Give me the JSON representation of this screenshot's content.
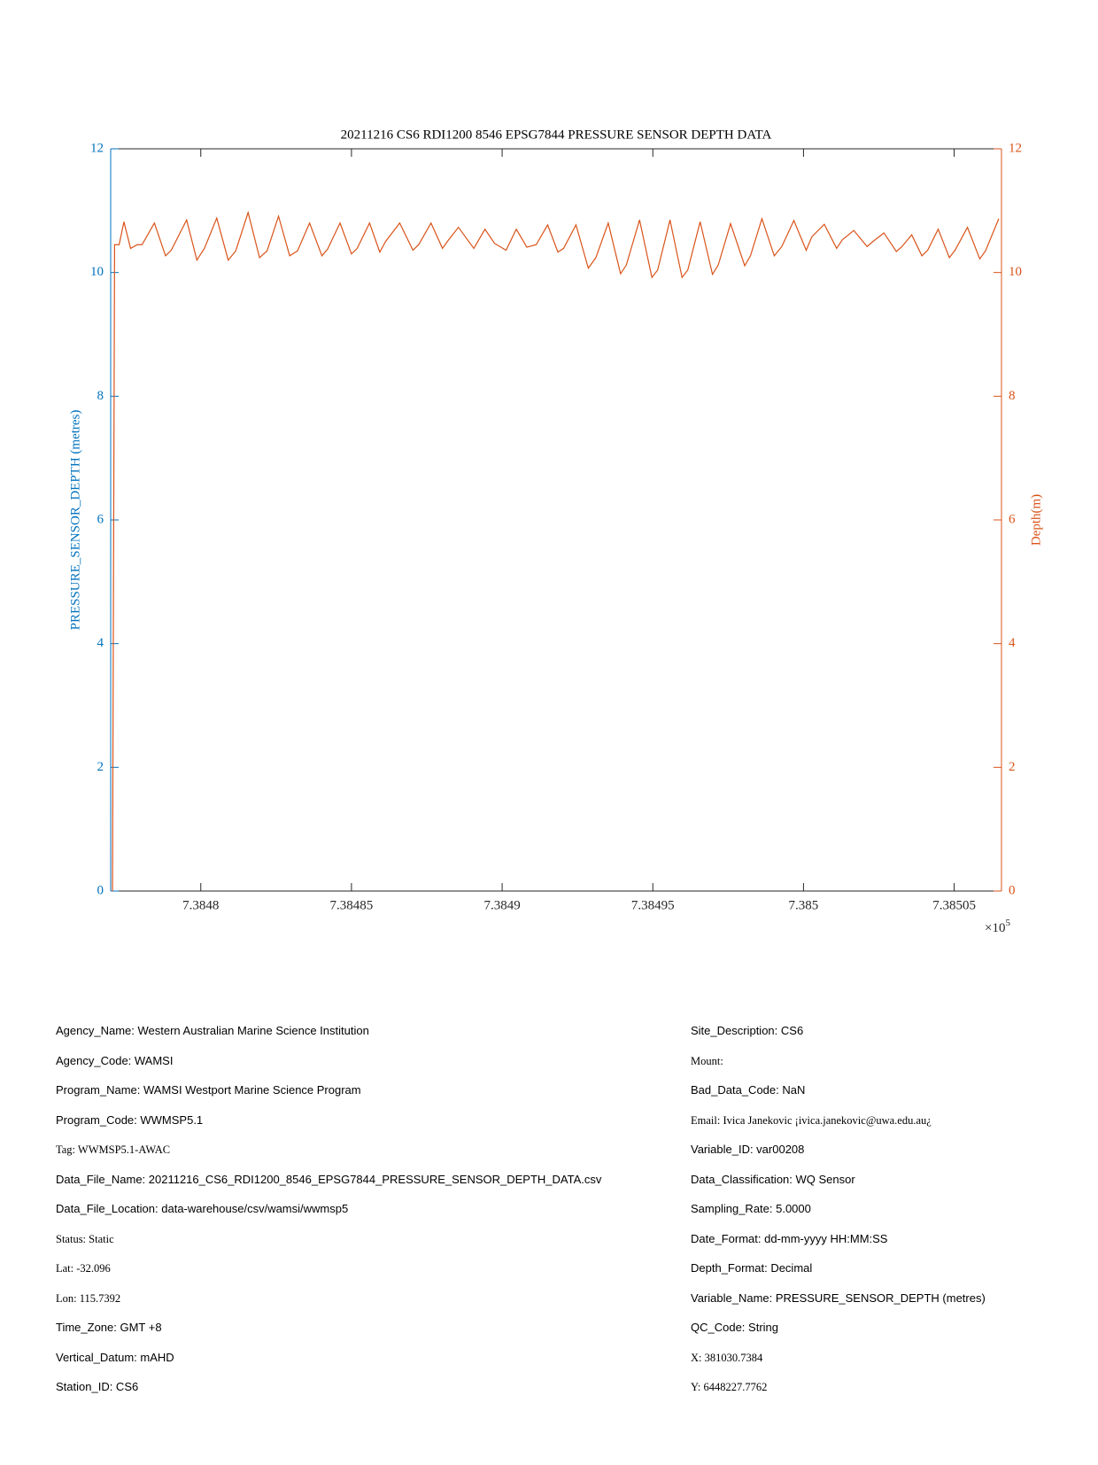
{
  "chart_data": {
    "type": "line",
    "title": "20211216 CS6 RDI1200 8546 EPSG7844 PRESSURE SENSOR DEPTH DATA",
    "ylabel": "PRESSURE_SENSOR_DEPTH (metres)",
    "ylabel_color": "#0072BD",
    "y2label": "Depth(m)",
    "y2label_color": "#D95319",
    "x_multiplier": "×10",
    "x_exponent": "5",
    "xlim": [
      738477.01,
      738506.57
    ],
    "xticks": [
      {
        "value": 738480,
        "label": "7.3848"
      },
      {
        "value": 738485,
        "label": "7.38485"
      },
      {
        "value": 738490,
        "label": "7.3849"
      },
      {
        "value": 738495,
        "label": "7.38495"
      },
      {
        "value": 738500,
        "label": "7.385"
      },
      {
        "value": 738505,
        "label": "7.38505"
      }
    ],
    "ylim": [
      0,
      12
    ],
    "yticks": [
      0,
      2,
      4,
      6,
      8,
      10,
      12
    ],
    "y2lim": [
      0,
      12
    ],
    "y2ticks": [
      0,
      2,
      4,
      6,
      8,
      10,
      12
    ],
    "x": [
      738477.07,
      738477.14,
      738477.29,
      738477.45,
      738477.67,
      738477.89,
      738478.05,
      738478.46,
      738478.83,
      738479.02,
      738479.53,
      738479.87,
      738480.12,
      738480.53,
      738480.91,
      738481.16,
      738481.57,
      738481.95,
      738482.2,
      738482.58,
      738482.95,
      738483.21,
      738483.61,
      738484.02,
      738484.21,
      738484.62,
      738485.0,
      738485.19,
      738485.6,
      738485.94,
      738486.13,
      738486.6,
      738487.04,
      738487.23,
      738487.64,
      738488.02,
      738488.21,
      738488.55,
      738489.06,
      738489.43,
      738489.75,
      738490.13,
      738490.47,
      738490.82,
      738491.13,
      738491.51,
      738491.85,
      738492.04,
      738492.45,
      738492.86,
      738493.11,
      738493.52,
      738493.93,
      738494.12,
      738494.56,
      738494.97,
      738495.16,
      738495.57,
      738495.97,
      738496.16,
      738496.57,
      738496.98,
      738497.17,
      738497.58,
      738498.05,
      738498.24,
      738498.62,
      738499.03,
      738499.28,
      738499.68,
      738500.09,
      738500.28,
      738500.69,
      738501.1,
      738501.29,
      738501.67,
      738502.11,
      738502.3,
      738502.67,
      738503.08,
      738503.27,
      738503.59,
      738503.93,
      738504.12,
      738504.47,
      738504.84,
      738505.03,
      738505.44,
      738505.85,
      738506.04,
      738506.48
    ],
    "series": [
      {
        "color": "#D95319",
        "axis": "y2",
        "values": [
          0,
          10.45,
          10.45,
          10.82,
          10.39,
          10.45,
          10.45,
          10.8,
          10.27,
          10.36,
          10.85,
          10.2,
          10.39,
          10.88,
          10.2,
          10.35,
          10.97,
          10.24,
          10.35,
          10.91,
          10.27,
          10.35,
          10.8,
          10.27,
          10.38,
          10.8,
          10.3,
          10.39,
          10.8,
          10.33,
          10.5,
          10.8,
          10.36,
          10.45,
          10.8,
          10.39,
          10.52,
          10.73,
          10.39,
          10.7,
          10.47,
          10.36,
          10.7,
          10.41,
          10.45,
          10.77,
          10.33,
          10.39,
          10.77,
          10.07,
          10.24,
          10.8,
          9.98,
          10.12,
          10.85,
          9.92,
          10.04,
          10.85,
          9.92,
          10.04,
          10.82,
          9.97,
          10.12,
          10.79,
          10.11,
          10.27,
          10.87,
          10.27,
          10.42,
          10.84,
          10.36,
          10.58,
          10.78,
          10.39,
          10.53,
          10.68,
          10.42,
          10.5,
          10.64,
          10.34,
          10.42,
          10.61,
          10.27,
          10.36,
          10.7,
          10.24,
          10.36,
          10.73,
          10.22,
          10.35,
          10.87
        ]
      }
    ]
  },
  "metadata": {
    "left": [
      "Agency_Name: Western Australian Marine Science Institution",
      "Agency_Code: WAMSI",
      "Program_Name: WAMSI Westport Marine Science Program",
      "Program_Code: WWMSP5.1",
      "Tag: WWMSP5.1-AWAC",
      "Data_File_Name: 20211216_CS6_RDI1200_8546_EPSG7844_PRESSURE_SENSOR_DEPTH_DATA.csv",
      "Data_File_Location: data-warehouse/csv/wamsi/wwmsp5",
      "Status: Static",
      "Lat: -32.096",
      "Lon: 115.7392",
      "Time_Zone: GMT +8",
      "Vertical_Datum: mAHD",
      "Station_ID: CS6"
    ],
    "right": [
      "Site_Description: CS6",
      "Mount:",
      "Bad_Data_Code: NaN",
      "Email: Ivica Janekovic ¡ivica.janekovic@uwa.edu.au¿",
      "Variable_ID: var00208",
      "Data_Classification: WQ Sensor",
      "Sampling_Rate: 5.0000",
      "Date_Format: dd-mm-yyyy HH:MM:SS",
      "Depth_Format: Decimal",
      "Variable_Name: PRESSURE_SENSOR_DEPTH (metres)",
      "QC_Code: String",
      "X: 381030.7384",
      "Y: 6448227.7762"
    ]
  }
}
